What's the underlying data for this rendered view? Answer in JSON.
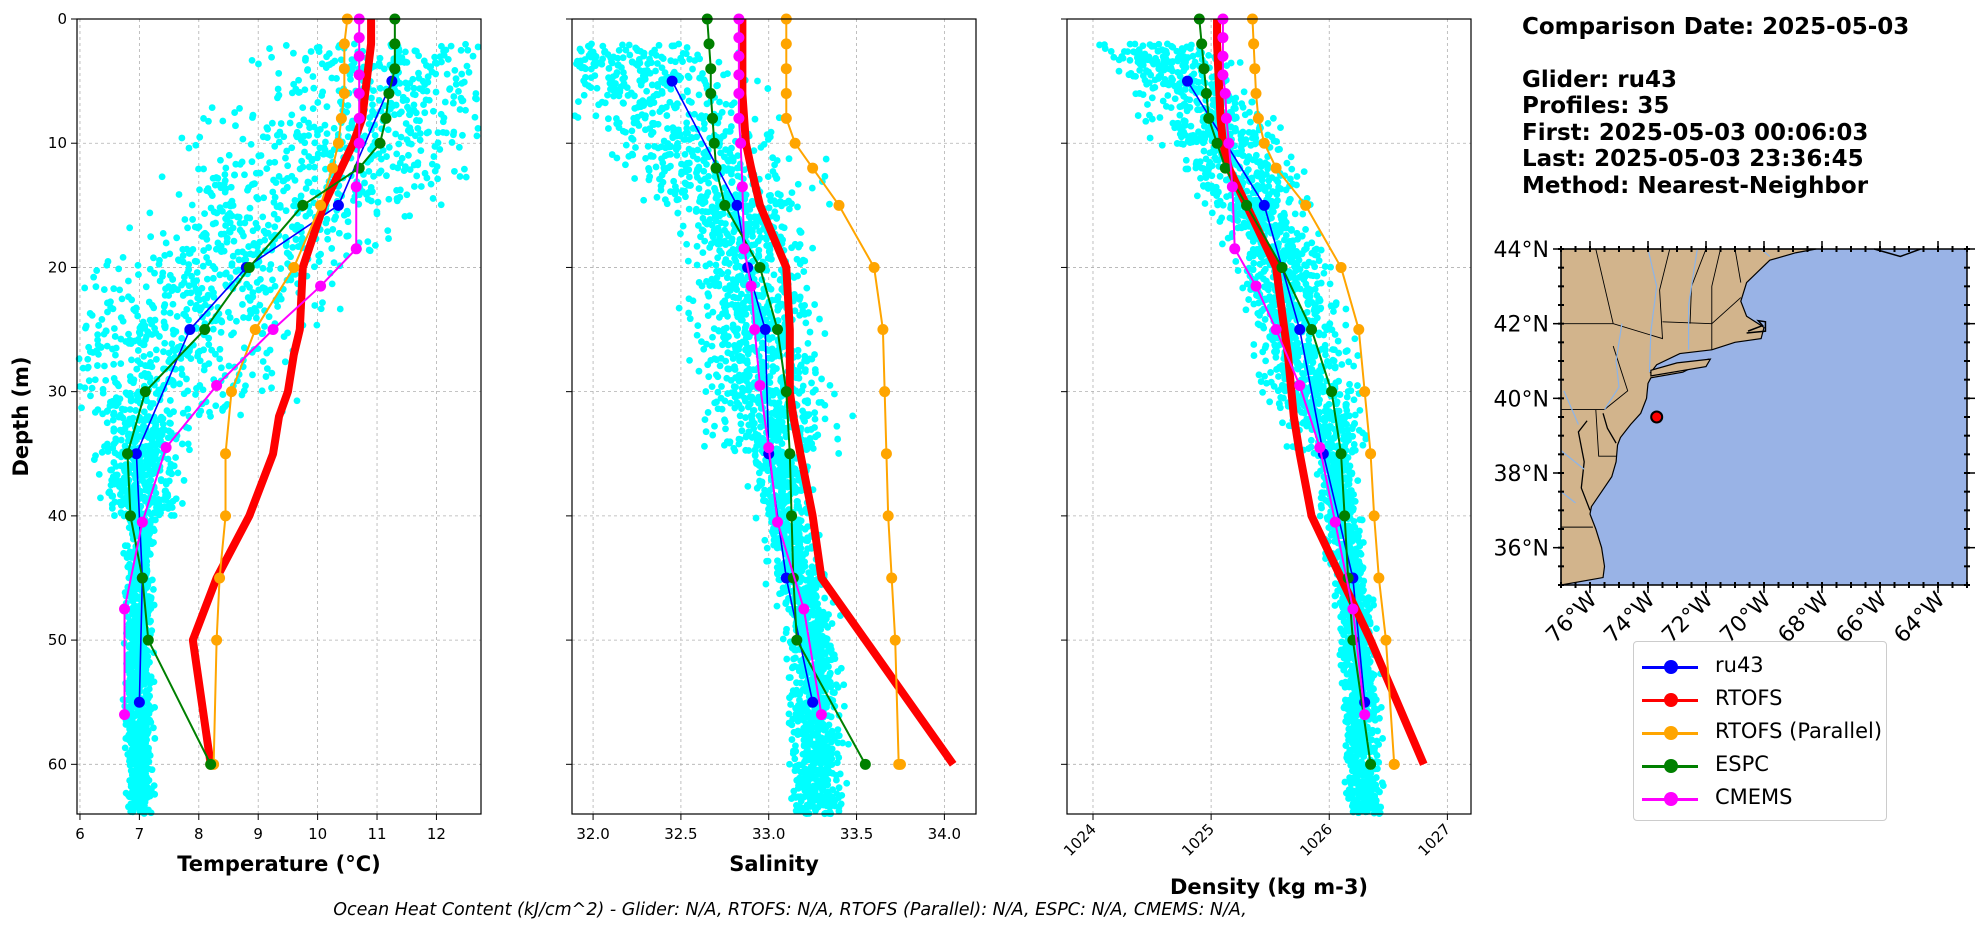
{
  "chart_data": [
    {
      "type": "line",
      "xlabel": "Temperature (°C)",
      "ylabel": "Depth (m)",
      "xlim": [
        5.95,
        12.75
      ],
      "ylim": [
        64,
        0
      ],
      "xticks": [
        6,
        7,
        8,
        9,
        10,
        11,
        12
      ],
      "yticks": [
        0,
        10,
        20,
        30,
        40,
        50,
        60
      ],
      "grid": true,
      "scatter": {
        "name": "ru43 observations",
        "color": "#00ffff"
      },
      "series": [
        {
          "name": "ru43",
          "color": "#0000ff",
          "width": 1.6,
          "x": [
            11.25,
            10.35,
            8.8,
            7.85,
            6.95,
            7.05,
            7.0
          ],
          "y": [
            5,
            15,
            20,
            25,
            35,
            45,
            55
          ]
        },
        {
          "name": "RTOFS",
          "color": "#ff0000",
          "width": 8,
          "x": [
            10.9,
            10.9,
            10.85,
            10.8,
            10.75,
            10.6,
            10.4,
            10.1,
            9.75,
            9.7,
            9.6,
            9.5,
            9.35,
            9.25,
            8.85,
            8.3,
            7.9,
            8.2
          ],
          "y": [
            0,
            2,
            4,
            6,
            8,
            10,
            12,
            15,
            20,
            25,
            27,
            30,
            32,
            35,
            40,
            45,
            50,
            60
          ]
        },
        {
          "name": "RTOFS (Parallel)",
          "color": "#ffa500",
          "width": 2,
          "x": [
            10.5,
            10.45,
            10.45,
            10.45,
            10.4,
            10.35,
            10.25,
            10.05,
            9.6,
            8.95,
            8.55,
            8.45,
            8.45,
            8.35,
            8.3,
            8.25,
            8.2
          ],
          "y": [
            0,
            2,
            4,
            6,
            8,
            10,
            12,
            15,
            20,
            25,
            30,
            35,
            40,
            45,
            50,
            60,
            60
          ]
        },
        {
          "name": "ESPC",
          "color": "#008000",
          "width": 2,
          "x": [
            11.3,
            11.3,
            11.3,
            11.2,
            11.15,
            11.05,
            10.7,
            9.75,
            8.85,
            8.1,
            7.1,
            6.8,
            6.85,
            7.05,
            7.15,
            8.2
          ],
          "y": [
            0,
            2,
            4,
            6,
            8,
            10,
            12,
            15,
            20,
            25,
            30,
            35,
            40,
            45,
            50,
            60
          ]
        },
        {
          "name": "CMEMS",
          "color": "#ff00ff",
          "width": 2,
          "x": [
            10.7,
            10.7,
            10.7,
            10.7,
            10.7,
            10.7,
            10.7,
            10.65,
            10.65,
            10.05,
            9.25,
            8.3,
            7.45,
            7.05,
            6.75,
            6.75
          ],
          "y": [
            0,
            1.5,
            3,
            4.5,
            6,
            8,
            10,
            13.5,
            18.5,
            21.5,
            25,
            29.5,
            34.5,
            40.5,
            47.5,
            56
          ]
        }
      ]
    },
    {
      "type": "line",
      "xlabel": "Salinity",
      "xlim": [
        31.88,
        34.18
      ],
      "ylim": [
        64,
        0
      ],
      "xticks": [
        32.0,
        32.5,
        33.0,
        33.5,
        34.0
      ],
      "yticks": [
        0,
        10,
        20,
        30,
        40,
        50,
        60
      ],
      "grid": true,
      "scatter": {
        "name": "ru43 observations",
        "color": "#00ffff"
      },
      "series": [
        {
          "name": "ru43",
          "color": "#0000ff",
          "width": 1.6,
          "x": [
            32.45,
            32.82,
            32.88,
            32.98,
            33.0,
            33.1,
            33.25
          ],
          "y": [
            5,
            15,
            20,
            25,
            35,
            45,
            55
          ]
        },
        {
          "name": "RTOFS",
          "color": "#ff0000",
          "width": 8,
          "x": [
            32.85,
            32.85,
            32.85,
            32.85,
            32.86,
            32.87,
            32.9,
            32.95,
            33.1,
            33.12,
            33.12,
            33.12,
            33.14,
            33.18,
            33.25,
            33.3,
            33.55,
            34.05
          ],
          "y": [
            0,
            2,
            4,
            6,
            8,
            10,
            12,
            15,
            20,
            25,
            27,
            30,
            32,
            35,
            40,
            45,
            50,
            60
          ]
        },
        {
          "name": "RTOFS (Parallel)",
          "color": "#ffa500",
          "width": 2,
          "x": [
            33.1,
            33.1,
            33.1,
            33.1,
            33.1,
            33.15,
            33.25,
            33.4,
            33.6,
            33.65,
            33.66,
            33.67,
            33.68,
            33.7,
            33.72,
            33.74,
            33.75
          ],
          "y": [
            0,
            2,
            4,
            6,
            8,
            10,
            12,
            15,
            20,
            25,
            30,
            35,
            40,
            45,
            50,
            60,
            60
          ]
        },
        {
          "name": "ESPC",
          "color": "#008000",
          "width": 2,
          "x": [
            32.65,
            32.66,
            32.67,
            32.67,
            32.68,
            32.69,
            32.7,
            32.75,
            32.95,
            33.05,
            33.1,
            33.12,
            33.13,
            33.14,
            33.16,
            33.55
          ],
          "y": [
            0,
            2,
            4,
            6,
            8,
            10,
            12,
            15,
            20,
            25,
            30,
            35,
            40,
            45,
            50,
            60
          ]
        },
        {
          "name": "CMEMS",
          "color": "#ff00ff",
          "width": 2,
          "x": [
            32.83,
            32.83,
            32.83,
            32.83,
            32.83,
            32.83,
            32.84,
            32.85,
            32.86,
            32.9,
            32.92,
            32.95,
            33.0,
            33.05,
            33.2,
            33.3
          ],
          "y": [
            0,
            1.5,
            3,
            4.5,
            6,
            8,
            10,
            13.5,
            18.5,
            21.5,
            25,
            29.5,
            34.5,
            40.5,
            47.5,
            56
          ]
        }
      ]
    },
    {
      "type": "line",
      "xlabel": "Density (kg m-3)",
      "xlim": [
        1023.78,
        1027.2
      ],
      "ylim": [
        64,
        0
      ],
      "xticks": [
        1024,
        1025,
        1026,
        1027
      ],
      "yticks": [
        0,
        10,
        20,
        30,
        40,
        50,
        60
      ],
      "grid": true,
      "scatter": {
        "name": "ru43 observations",
        "color": "#00ffff"
      },
      "series": [
        {
          "name": "ru43",
          "color": "#0000ff",
          "width": 1.6,
          "x": [
            1024.8,
            1025.45,
            1025.6,
            1025.75,
            1025.95,
            1026.2,
            1026.3
          ],
          "y": [
            5,
            15,
            20,
            25,
            35,
            45,
            55
          ]
        },
        {
          "name": "RTOFS",
          "color": "#ff0000",
          "width": 8,
          "x": [
            1025.05,
            1025.05,
            1025.06,
            1025.07,
            1025.08,
            1025.1,
            1025.15,
            1025.3,
            1025.55,
            1025.62,
            1025.65,
            1025.68,
            1025.7,
            1025.75,
            1025.85,
            1026.1,
            1026.35,
            1026.8
          ],
          "y": [
            0,
            2,
            4,
            6,
            8,
            10,
            12,
            15,
            20,
            25,
            27,
            30,
            32,
            35,
            40,
            45,
            50,
            60
          ]
        },
        {
          "name": "RTOFS (Parallel)",
          "color": "#ffa500",
          "width": 2,
          "x": [
            1025.35,
            1025.36,
            1025.37,
            1025.38,
            1025.4,
            1025.45,
            1025.55,
            1025.8,
            1026.1,
            1026.25,
            1026.3,
            1026.35,
            1026.38,
            1026.42,
            1026.48,
            1026.55,
            1026.55
          ],
          "y": [
            0,
            2,
            4,
            6,
            8,
            10,
            12,
            15,
            20,
            25,
            30,
            35,
            40,
            45,
            50,
            60,
            60
          ]
        },
        {
          "name": "ESPC",
          "color": "#008000",
          "width": 2,
          "x": [
            1024.9,
            1024.92,
            1024.94,
            1024.96,
            1024.98,
            1025.05,
            1025.12,
            1025.3,
            1025.6,
            1025.85,
            1026.02,
            1026.1,
            1026.13,
            1026.16,
            1026.2,
            1026.35
          ],
          "y": [
            0,
            2,
            4,
            6,
            8,
            10,
            12,
            15,
            20,
            25,
            30,
            35,
            40,
            45,
            50,
            60
          ]
        },
        {
          "name": "CMEMS",
          "color": "#ff00ff",
          "width": 2,
          "x": [
            1025.1,
            1025.1,
            1025.1,
            1025.1,
            1025.12,
            1025.13,
            1025.15,
            1025.18,
            1025.2,
            1025.38,
            1025.55,
            1025.75,
            1025.92,
            1026.05,
            1026.2,
            1026.3
          ],
          "y": [
            0,
            1.5,
            3,
            4.5,
            6,
            8,
            10,
            13.5,
            18.5,
            21.5,
            25,
            29.5,
            34.5,
            40.5,
            47.5,
            56
          ]
        }
      ]
    },
    {
      "type": "map",
      "lon_range": [
        -77,
        -63
      ],
      "lat_range": [
        35,
        44
      ],
      "lat_ticks": [
        "44°N",
        "42°N",
        "40°N",
        "38°N",
        "36°N"
      ],
      "lat_values": [
        44,
        42,
        40,
        38,
        36
      ],
      "lon_ticks": [
        "76°W",
        "74°W",
        "72°W",
        "70°W",
        "68°W",
        "66°W",
        "64°W"
      ],
      "lon_values": [
        -76,
        -74,
        -72,
        -70,
        -68,
        -66,
        -64
      ],
      "glider_position": {
        "lon": -73.7,
        "lat": 39.5
      },
      "land_color": "#d2b48c",
      "ocean_color": "#99b3e6"
    }
  ],
  "info": {
    "comparison_date": "Comparison Date: 2025-05-03",
    "glider": "Glider: ru43",
    "profiles": "Profiles: 35",
    "first": "First: 2025-05-03 00:06:03",
    "last": "Last: 2025-05-03 23:36:45",
    "method": "Method: Nearest-Neighbor"
  },
  "legend": [
    {
      "label": "ru43",
      "color": "#0000ff"
    },
    {
      "label": "RTOFS",
      "color": "#ff0000"
    },
    {
      "label": "RTOFS (Parallel)",
      "color": "#ffa500"
    },
    {
      "label": "ESPC",
      "color": "#008000"
    },
    {
      "label": "CMEMS",
      "color": "#ff00ff"
    }
  ],
  "footer": "Ocean Heat Content (kJ/cm^2) - Glider: N/A,  RTOFS: N/A,  RTOFS (Parallel): N/A,  ESPC: N/A,  CMEMS: N/A,"
}
